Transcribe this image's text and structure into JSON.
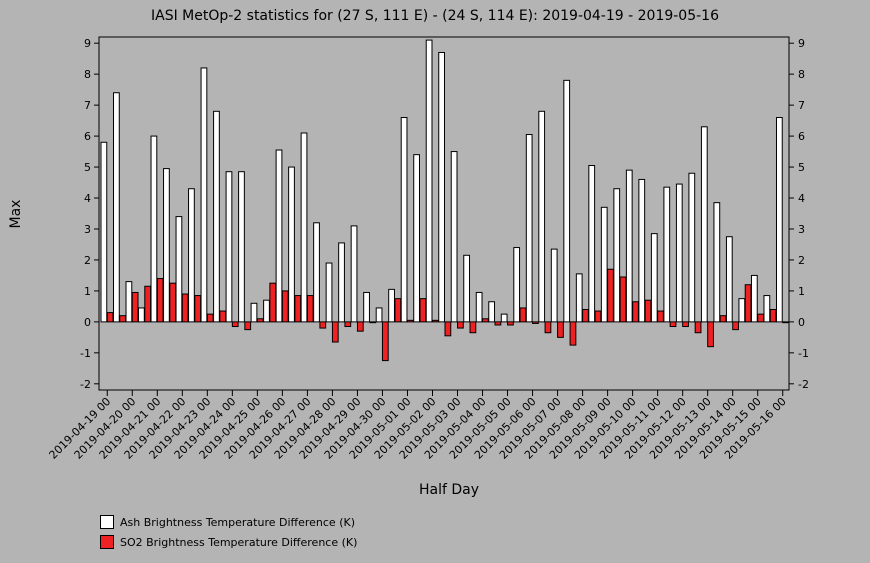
{
  "chart_data": {
    "type": "bar",
    "title": "IASI MetOp-2 statistics for (27 S, 111 E) - (24 S, 114 E): 2019-04-19 - 2019-05-16",
    "xlabel": "Half Day",
    "ylabel": "Max",
    "ylim": [
      -2.2,
      9.2
    ],
    "yticks": [
      -2,
      -1,
      0,
      1,
      2,
      3,
      4,
      5,
      6,
      7,
      8,
      9
    ],
    "grid": false,
    "legend_position": "bottom-left",
    "tick_labels": [
      "2019-04-19 00",
      "2019-04-20 00",
      "2019-04-21 00",
      "2019-04-22 00",
      "2019-04-23 00",
      "2019-04-24 00",
      "2019-04-25 00",
      "2019-04-26 00",
      "2019-04-27 00",
      "2019-04-28 00",
      "2019-04-29 00",
      "2019-04-30 00",
      "2019-05-01 00",
      "2019-05-02 00",
      "2019-05-03 00",
      "2019-05-04 00",
      "2019-05-05 00",
      "2019-05-06 00",
      "2019-05-07 00",
      "2019-05-08 00",
      "2019-05-09 00",
      "2019-05-10 00",
      "2019-05-11 00",
      "2019-05-12 00",
      "2019-05-13 00",
      "2019-05-14 00",
      "2019-05-15 00",
      "2019-05-16 00"
    ],
    "series": [
      {
        "name": "Ash Brightness Temperature Difference (K)",
        "color": "#ffffff",
        "values": [
          5.8,
          7.4,
          1.3,
          0.45,
          6.0,
          4.95,
          3.4,
          4.3,
          8.2,
          6.8,
          4.85,
          4.85,
          0.6,
          0.7,
          5.55,
          5.0,
          6.1,
          3.2,
          1.9,
          2.55,
          3.1,
          0.95,
          0.45,
          1.05,
          6.6,
          5.4,
          9.1,
          8.7,
          5.5,
          2.15,
          0.95,
          0.65,
          0.25,
          2.4,
          6.05,
          6.8,
          2.35,
          7.8,
          1.55,
          5.05,
          3.7,
          4.3,
          4.9,
          4.6,
          2.85,
          4.35,
          4.45,
          4.8,
          6.3,
          3.85,
          2.75,
          0.75,
          1.5,
          0.85,
          6.6
        ]
      },
      {
        "name": "SO2 Brightness Temperature Difference (K)",
        "color": "#ee2222",
        "values": [
          0.3,
          0.2,
          0.95,
          1.15,
          1.4,
          1.25,
          0.9,
          0.85,
          0.25,
          0.35,
          -0.15,
          -0.25,
          0.1,
          1.25,
          1.0,
          0.85,
          0.85,
          -0.2,
          -0.65,
          -0.15,
          -0.3,
          0.0,
          -1.25,
          0.75,
          0.05,
          0.75,
          0.05,
          -0.45,
          -0.2,
          -0.35,
          0.1,
          -0.1,
          -0.1,
          0.45,
          -0.05,
          -0.35,
          -0.5,
          -0.75,
          0.4,
          0.35,
          1.7,
          1.45,
          0.65,
          0.7,
          0.35,
          -0.15,
          -0.15,
          -0.35,
          -0.8,
          0.2,
          -0.25,
          1.2,
          0.25,
          0.4,
          0.0
        ]
      }
    ]
  }
}
